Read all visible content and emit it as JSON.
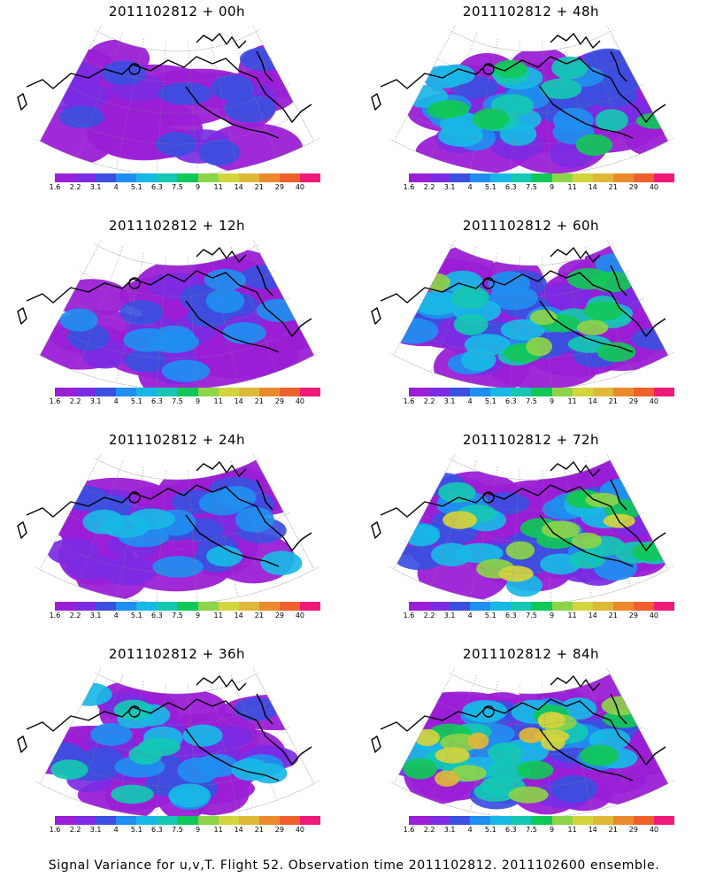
{
  "panels": [
    {
      "title": "2011102812 + 00h",
      "level": 0
    },
    {
      "title": "2011102812 + 48h",
      "level": 4
    },
    {
      "title": "2011102812 + 12h",
      "level": 1
    },
    {
      "title": "2011102812 + 60h",
      "level": 5
    },
    {
      "title": "2011102812 + 24h",
      "level": 2
    },
    {
      "title": "2011102812 + 72h",
      "level": 6
    },
    {
      "title": "2011102812 + 36h",
      "level": 3
    },
    {
      "title": "2011102812 + 84h",
      "level": 7
    }
  ],
  "colorbar": {
    "labels": [
      "1.6",
      "2.2",
      "3.1",
      "4",
      "5.1",
      "6.3",
      "7.5",
      "9",
      "11",
      "14",
      "21",
      "29",
      "40"
    ],
    "colors": [
      "#9b1fd6",
      "#7b2be3",
      "#3b4fe0",
      "#1f8ef0",
      "#18b8e6",
      "#14c8b4",
      "#10c858",
      "#8cd448",
      "#d4d43c",
      "#e0b838",
      "#eb8a2c",
      "#f0602c",
      "#f01a7a"
    ]
  },
  "footer": "Signal Variance for u,v,T. Flight 52. Observation time 2011102812. 2011102600 ensemble."
}
